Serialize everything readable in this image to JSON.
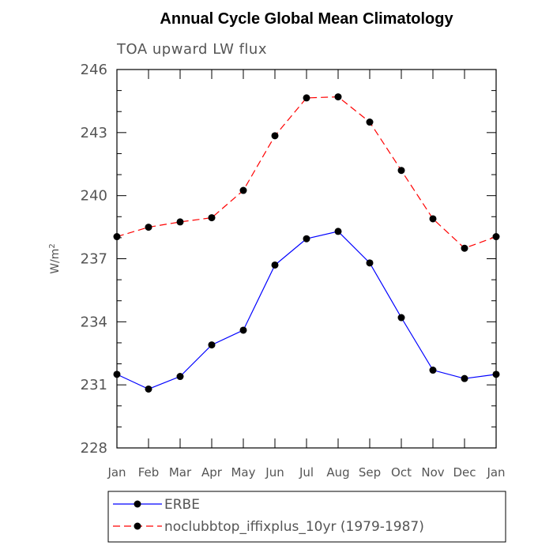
{
  "chart_data": {
    "type": "line",
    "title": "Annual Cycle Global Mean Climatology",
    "subtitle": "TOA upward LW flux",
    "xlabel": "",
    "ylabel": "W/m",
    "ylabel_superscript": "2",
    "categories": [
      "Jan",
      "Feb",
      "Mar",
      "Apr",
      "May",
      "Jun",
      "Jul",
      "Aug",
      "Sep",
      "Oct",
      "Nov",
      "Dec",
      "Jan"
    ],
    "ylim": [
      228,
      246
    ],
    "yticks": [
      228,
      231,
      234,
      237,
      240,
      243,
      246
    ],
    "grid": false,
    "legend_position": "bottom",
    "series": [
      {
        "name": "ERBE",
        "color": "#0000ff",
        "dash": "solid",
        "marker": "circle",
        "values": [
          231.5,
          230.8,
          231.4,
          232.9,
          233.6,
          236.7,
          237.95,
          238.3,
          236.8,
          234.2,
          231.7,
          231.3,
          231.5
        ]
      },
      {
        "name": "noclubbtop_iffixplus_10yr (1979-1987)",
        "color": "#ff0000",
        "dash": "dashed",
        "marker": "circle",
        "values": [
          238.05,
          238.5,
          238.75,
          238.95,
          240.25,
          242.85,
          244.65,
          244.7,
          243.5,
          241.2,
          238.9,
          237.5,
          238.05
        ]
      }
    ]
  }
}
